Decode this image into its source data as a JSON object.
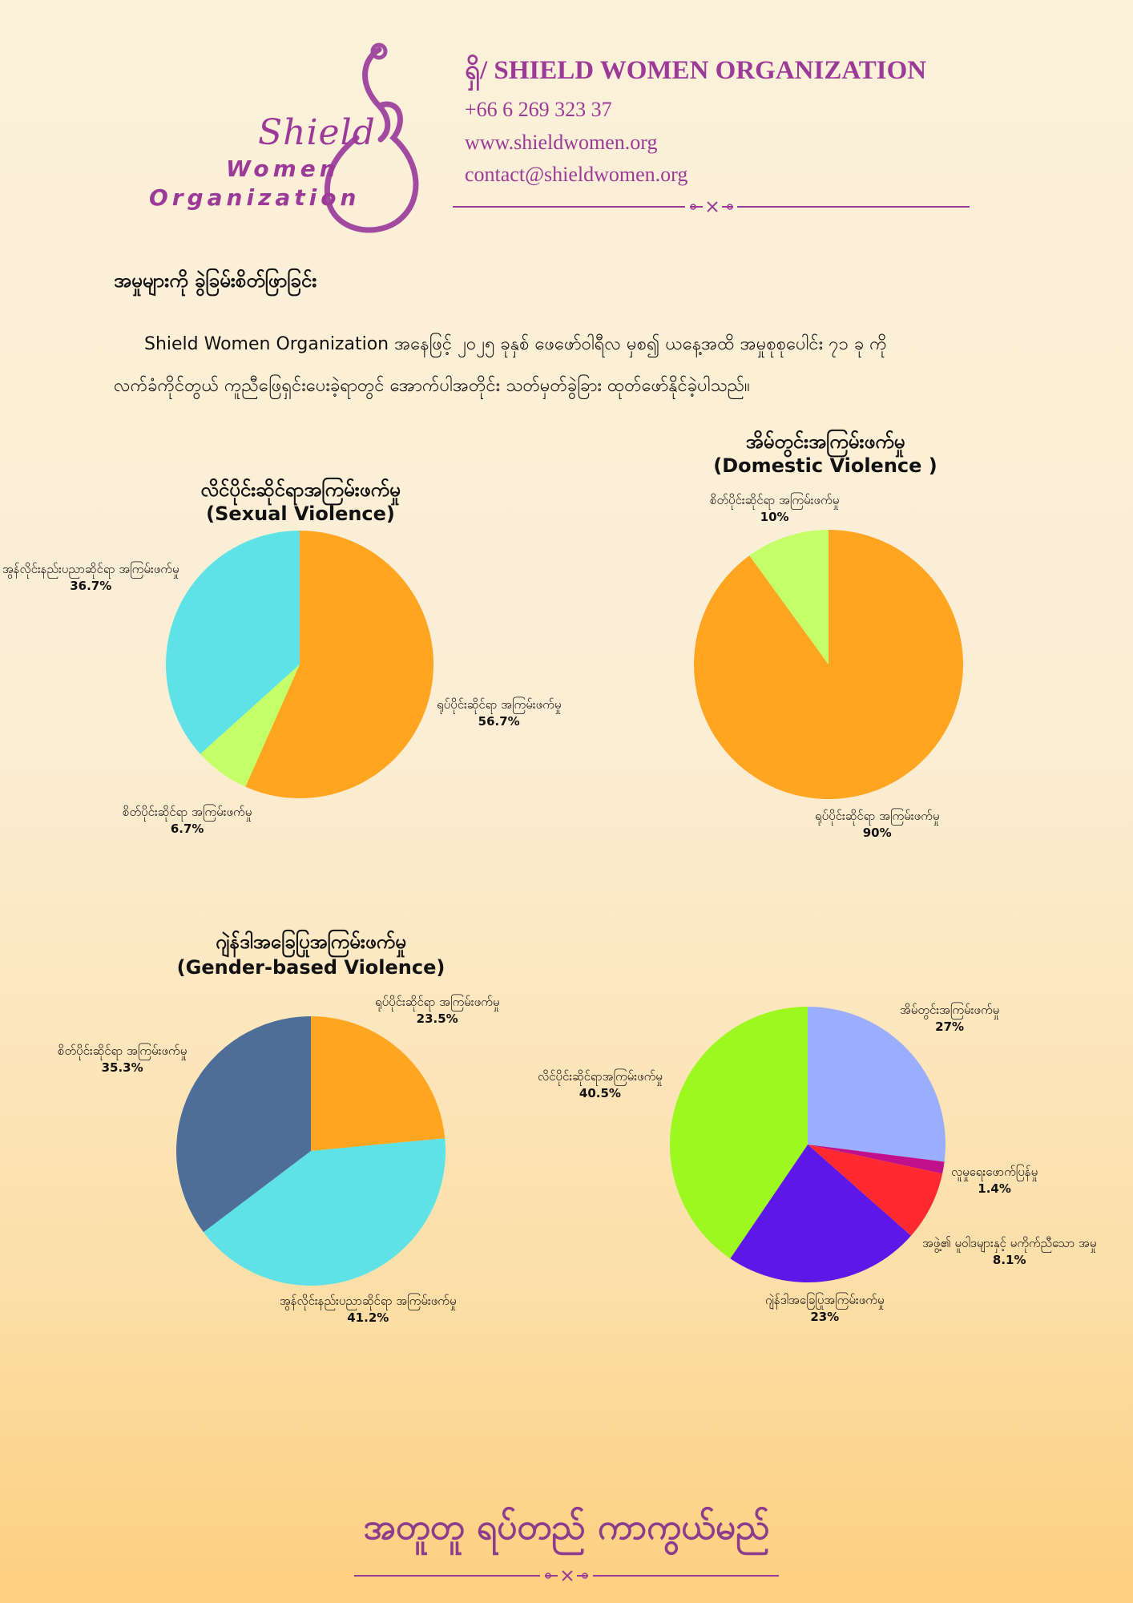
{
  "header": {
    "logo_text": [
      "Shield",
      "Women",
      "Organization"
    ],
    "org_name": "ရှိ/ SHIELD WOMEN ORGANIZATION",
    "phone": "+66 6 269 323 37",
    "website": "www.shieldwomen.org",
    "email": "contact@shieldwomen.org"
  },
  "section_title": "အမှုများကို ခွဲခြမ်းစိတ်ဖြာခြင်း",
  "intro": {
    "line1": "Shield Women Organization အနေဖြင့် ၂၀၂၅ ခုနှစ် ဖေဖော်ဝါရီလ မှစ၍ ယနေ့အထိ အမှုစုစုပေါင်း ၇၁ ခု ကို",
    "line2": "လက်ခံကိုင်တွယ် ကူညီဖြေရှင်းပေးခဲ့ရာတွင် အောက်ပါအတိုင်း သတ်မှတ်ခွဲခြား ထုတ်ဖော်နိုင်ခဲ့ပါသည်။"
  },
  "chart_data": [
    {
      "type": "pie",
      "title": "လိင်ပိုင်းဆိုင်ရာအကြမ်းဖက်မှု",
      "subtitle": "(Sexual Violence)",
      "labels": [
        "ရုပ်ပိုင်းဆိုင်ရာ အကြမ်းဖက်မှု",
        "စိတ်ပိုင်းဆိုင်ရာ အကြမ်းဖက်မှု",
        "အွန်လိုင်းနည်းပညာဆိုင်ရာ အကြမ်းဖက်မှု"
      ],
      "values": [
        56.7,
        6.7,
        36.7
      ],
      "value_labels": [
        "56.7%",
        "6.7%",
        "36.7%"
      ],
      "colors": [
        "#ffa520",
        "#c4ff6a",
        "#5ee2e6"
      ]
    },
    {
      "type": "pie",
      "title": "အိမ်တွင်းအကြမ်းဖက်မှု",
      "subtitle": "(Domestic Violence )",
      "labels": [
        "ရုပ်ပိုင်းဆိုင်ရာ အကြမ်းဖက်မှု",
        "စိတ်ပိုင်းဆိုင်ရာ အကြမ်းဖက်မှု"
      ],
      "values": [
        90,
        10
      ],
      "value_labels": [
        "90%",
        "10%"
      ],
      "colors": [
        "#ffa520",
        "#c4ff6a"
      ]
    },
    {
      "type": "pie",
      "title": "ဂျဲန်ဒါအခြေပြုအကြမ်းဖက်မှု",
      "subtitle": "(Gender-based Violence)",
      "labels": [
        "ရုပ်ပိုင်းဆိုင်ရာ အကြမ်းဖက်မှု",
        "အွန်လိုင်းနည်းပညာဆိုင်ရာ အကြမ်းဖက်မှု",
        "စိတ်ပိုင်းဆိုင်ရာ အကြမ်းဖက်မှု"
      ],
      "values": [
        23.5,
        41.2,
        35.3
      ],
      "value_labels": [
        "23.5%",
        "41.2%",
        "35.3%"
      ],
      "colors": [
        "#ffa520",
        "#5ee2e6",
        "#4e6e9a"
      ]
    },
    {
      "type": "pie",
      "title": "",
      "labels": [
        "အိမ်တွင်းအကြမ်းဖက်မှု",
        "လူမှုရေးဖောက်ပြန်မှု",
        "အဖွဲ့၏ မူဝါဒများနှင့် မကိုက်ညီသော အမှု",
        "ဂျဲန်ဒါအခြေပြုအကြမ်းဖက်မှု",
        "လိင်ပိုင်းဆိုင်ရာအကြမ်းဖက်မှု"
      ],
      "values": [
        27,
        1.4,
        8.1,
        23,
        40.5
      ],
      "value_labels": [
        "27%",
        "1.4%",
        "8.1%",
        "23%",
        "40.5%"
      ],
      "colors": [
        "#9aadff",
        "#c0108c",
        "#ff2a30",
        "#5d18e8",
        "#9cf820"
      ]
    }
  ],
  "footer": {
    "slogan": "အတူတူ ရပ်တည် ကာကွယ်မည်"
  }
}
